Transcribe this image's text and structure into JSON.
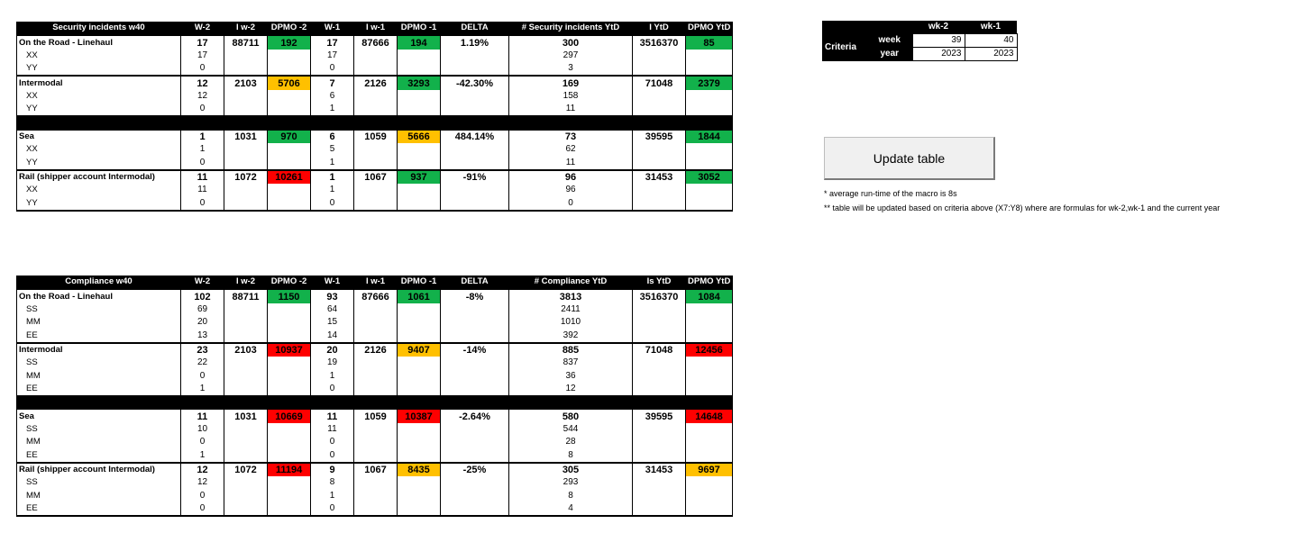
{
  "security": {
    "headers": [
      "Security incidents w40",
      "W-2",
      "I w-2",
      "DPMO -2",
      "W-1",
      "I w-1",
      "DPMO -1",
      "DELTA",
      "# Security incidents YtD",
      "I YtD",
      "DPMO YtD"
    ],
    "rows": [
      {
        "type": "cat",
        "cells": [
          "On the Road - Linehaul",
          "17",
          "88711",
          "192",
          "17",
          "87666",
          "194",
          "1.19%",
          "300",
          "3516370",
          "85"
        ],
        "colors": {
          "3": "green",
          "6": "green",
          "10": "green"
        }
      },
      {
        "type": "sub",
        "cells": [
          "XX",
          "17",
          "",
          "",
          "17",
          "",
          "",
          "",
          "297",
          "",
          ""
        ]
      },
      {
        "type": "sub",
        "cells": [
          "YY",
          "0",
          "",
          "",
          "0",
          "",
          "",
          "",
          "3",
          "",
          ""
        ]
      },
      {
        "type": "cat",
        "cells": [
          "Intermodal",
          "12",
          "2103",
          "5706",
          "7",
          "2126",
          "3293",
          "-42.30%",
          "169",
          "71048",
          "2379"
        ],
        "colors": {
          "3": "amber",
          "6": "green",
          "10": "green"
        }
      },
      {
        "type": "sub",
        "cells": [
          "XX",
          "12",
          "",
          "",
          "6",
          "",
          "",
          "",
          "158",
          "",
          ""
        ]
      },
      {
        "type": "sub",
        "cells": [
          "YY",
          "0",
          "",
          "",
          "1",
          "",
          "",
          "",
          "11",
          "",
          ""
        ]
      },
      {
        "type": "blackrow",
        "cells": [
          "",
          "",
          "",
          "",
          "",
          "",
          "",
          "",
          "",
          "",
          ""
        ]
      },
      {
        "type": "cat",
        "cells": [
          "Sea",
          "1",
          "1031",
          "970",
          "6",
          "1059",
          "5666",
          "484.14%",
          "73",
          "39595",
          "1844"
        ],
        "colors": {
          "3": "green",
          "6": "amber",
          "10": "green"
        }
      },
      {
        "type": "sub",
        "cells": [
          "XX",
          "1",
          "",
          "",
          "5",
          "",
          "",
          "",
          "62",
          "",
          ""
        ]
      },
      {
        "type": "sub",
        "cells": [
          "YY",
          "0",
          "",
          "",
          "1",
          "",
          "",
          "",
          "11",
          "",
          ""
        ]
      },
      {
        "type": "cat",
        "cells": [
          "Rail (shipper account Intermodal)",
          "11",
          "1072",
          "10261",
          "1",
          "1067",
          "937",
          "-91%",
          "96",
          "31453",
          "3052"
        ],
        "colors": {
          "3": "red",
          "6": "green",
          "10": "green"
        }
      },
      {
        "type": "sub",
        "cells": [
          "XX",
          "11",
          "",
          "",
          "1",
          "",
          "",
          "",
          "96",
          "",
          ""
        ]
      },
      {
        "type": "sub",
        "cells": [
          "YY",
          "0",
          "",
          "",
          "0",
          "",
          "",
          "",
          "0",
          "",
          ""
        ]
      }
    ]
  },
  "compliance": {
    "headers": [
      "Compliance w40",
      "W-2",
      "I w-2",
      "DPMO -2",
      "W-1",
      "I w-1",
      "DPMO -1",
      "DELTA",
      "# Compliance YtD",
      "Is YtD",
      "DPMO YtD"
    ],
    "rows": [
      {
        "type": "cat",
        "cells": [
          "On the Road - Linehaul",
          "102",
          "88711",
          "1150",
          "93",
          "87666",
          "1061",
          "-8%",
          "3813",
          "3516370",
          "1084"
        ],
        "colors": {
          "3": "green",
          "6": "green",
          "10": "green"
        }
      },
      {
        "type": "sub",
        "cells": [
          "SS",
          "69",
          "",
          "",
          "64",
          "",
          "",
          "",
          "2411",
          "",
          ""
        ]
      },
      {
        "type": "sub",
        "cells": [
          "MM",
          "20",
          "",
          "",
          "15",
          "",
          "",
          "",
          "1010",
          "",
          ""
        ]
      },
      {
        "type": "sub",
        "cells": [
          "EE",
          "13",
          "",
          "",
          "14",
          "",
          "",
          "",
          "392",
          "",
          ""
        ]
      },
      {
        "type": "cat",
        "cells": [
          "Intermodal",
          "23",
          "2103",
          "10937",
          "20",
          "2126",
          "9407",
          "-14%",
          "885",
          "71048",
          "12456"
        ],
        "colors": {
          "3": "red",
          "6": "amber",
          "10": "red"
        }
      },
      {
        "type": "sub",
        "cells": [
          "SS",
          "22",
          "",
          "",
          "19",
          "",
          "",
          "",
          "837",
          "",
          ""
        ]
      },
      {
        "type": "sub",
        "cells": [
          "MM",
          "0",
          "",
          "",
          "1",
          "",
          "",
          "",
          "36",
          "",
          ""
        ]
      },
      {
        "type": "sub",
        "cells": [
          "EE",
          "1",
          "",
          "",
          "0",
          "",
          "",
          "",
          "12",
          "",
          ""
        ]
      },
      {
        "type": "blackrow",
        "cells": [
          "",
          "",
          "",
          "",
          "",
          "",
          "",
          "",
          "",
          "",
          ""
        ]
      },
      {
        "type": "cat",
        "cells": [
          "Sea",
          "11",
          "1031",
          "10669",
          "11",
          "1059",
          "10387",
          "-2.64%",
          "580",
          "39595",
          "14648"
        ],
        "colors": {
          "3": "red",
          "6": "red",
          "10": "red"
        }
      },
      {
        "type": "sub",
        "cells": [
          "SS",
          "10",
          "",
          "",
          "11",
          "",
          "",
          "",
          "544",
          "",
          ""
        ]
      },
      {
        "type": "sub",
        "cells": [
          "MM",
          "0",
          "",
          "",
          "0",
          "",
          "",
          "",
          "28",
          "",
          ""
        ]
      },
      {
        "type": "sub",
        "cells": [
          "EE",
          "1",
          "",
          "",
          "0",
          "",
          "",
          "",
          "8",
          "",
          ""
        ]
      },
      {
        "type": "cat",
        "cells": [
          "Rail (shipper account Intermodal)",
          "12",
          "1072",
          "11194",
          "9",
          "1067",
          "8435",
          "-25%",
          "305",
          "31453",
          "9697"
        ],
        "colors": {
          "3": "red",
          "6": "amber",
          "10": "amber"
        }
      },
      {
        "type": "sub",
        "cells": [
          "SS",
          "12",
          "",
          "",
          "8",
          "",
          "",
          "",
          "293",
          "",
          ""
        ]
      },
      {
        "type": "sub",
        "cells": [
          "MM",
          "0",
          "",
          "",
          "1",
          "",
          "",
          "",
          "8",
          "",
          ""
        ]
      },
      {
        "type": "sub",
        "cells": [
          "EE",
          "0",
          "",
          "",
          "0",
          "",
          "",
          "",
          "4",
          "",
          ""
        ]
      }
    ]
  },
  "criteria": {
    "label": "Criteria",
    "col1": "wk-2",
    "col2": "wk-1",
    "week_label": "week",
    "year_label": "year",
    "week_wk2": "39",
    "week_wk1": "40",
    "year_wk2": "2023",
    "year_wk1": "2023"
  },
  "update_button_label": "Update table",
  "notes": {
    "note1": "* average run-time of the macro is 8s",
    "note2": "** table will be updated based on criteria above (X7:Y8) where are formulas for wk-2,wk-1 and the current year"
  },
  "colors": {
    "green": "#12b14b",
    "amber": "#ffc000",
    "red": "#fe0000"
  }
}
